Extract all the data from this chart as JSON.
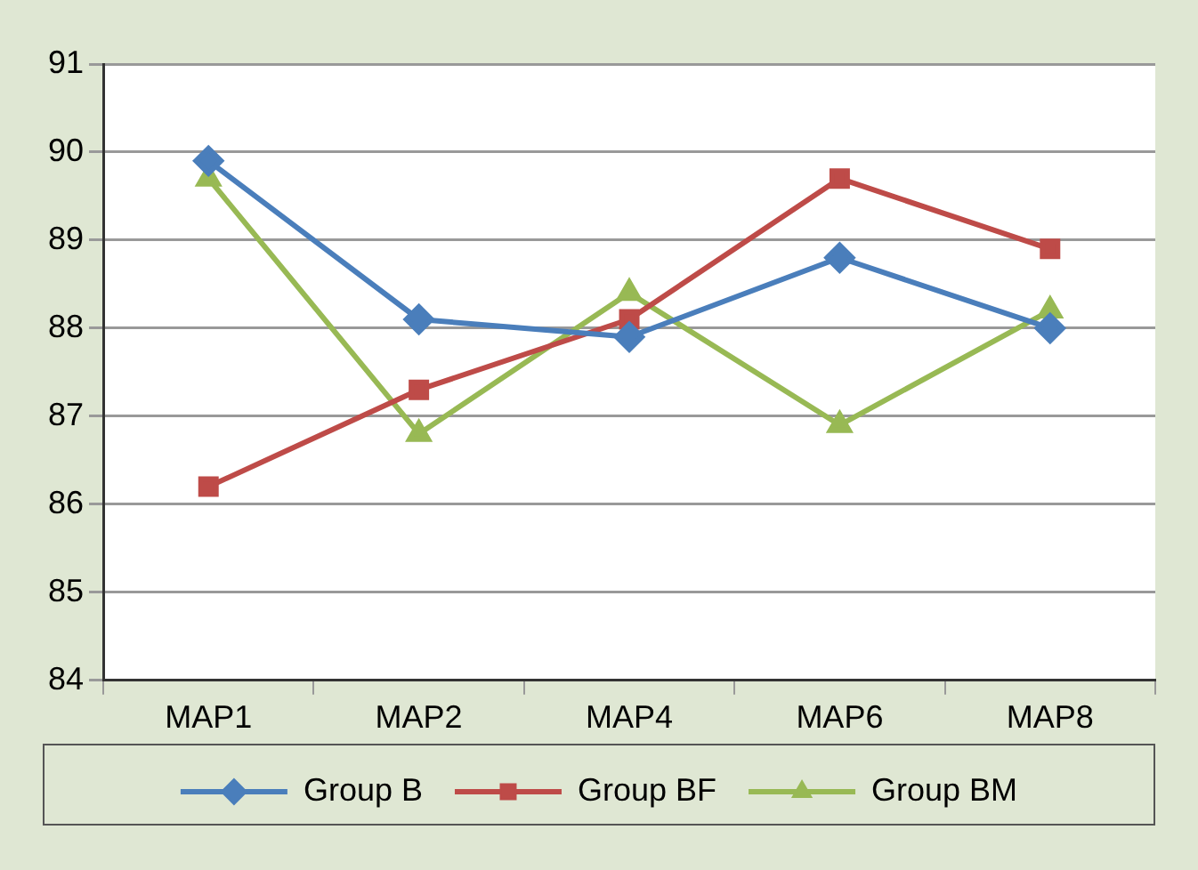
{
  "chart_data": {
    "type": "line",
    "categories": [
      "MAP1",
      "MAP2",
      "MAP4",
      "MAP6",
      "MAP8"
    ],
    "series": [
      {
        "name": "Group B",
        "color": "#4a7ebb",
        "marker": "diamond",
        "values": [
          89.9,
          88.1,
          87.9,
          88.8,
          88.0
        ]
      },
      {
        "name": "Group BF",
        "color": "#be4b48",
        "marker": "square",
        "values": [
          86.2,
          87.3,
          88.1,
          89.7,
          88.9
        ]
      },
      {
        "name": "Group BM",
        "color": "#98b954",
        "marker": "triangle",
        "values": [
          89.7,
          86.8,
          88.4,
          86.9,
          88.2
        ]
      }
    ],
    "ylim": [
      84,
      91
    ],
    "yticks": [
      84,
      85,
      86,
      87,
      88,
      89,
      90,
      91
    ],
    "grid": "y",
    "legend": "bottom"
  }
}
